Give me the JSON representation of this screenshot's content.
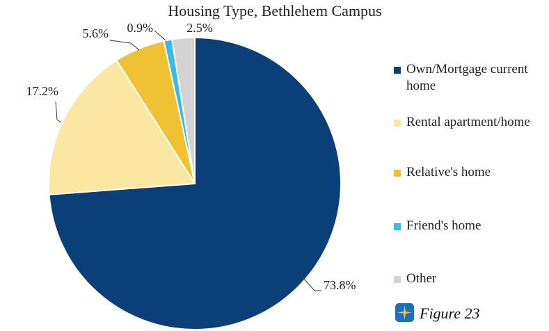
{
  "chart_data": {
    "type": "pie",
    "title": "Housing Type, Bethlehem Campus",
    "categories": [
      "Own/Mortgage current home",
      "Rental apartment/home",
      "Relative's home",
      "Friend's home",
      "Other"
    ],
    "values": [
      73.8,
      17.2,
      5.6,
      0.9,
      2.5
    ],
    "value_labels": [
      "73.8%",
      "17.2%",
      "5.6%",
      "0.9%",
      "2.5%"
    ],
    "colors": [
      "#0b3f78",
      "#fbe7a1",
      "#efc233",
      "#3cb9e8",
      "#d3d3d3"
    ],
    "legend": "right",
    "annotation": "Figure 23"
  }
}
